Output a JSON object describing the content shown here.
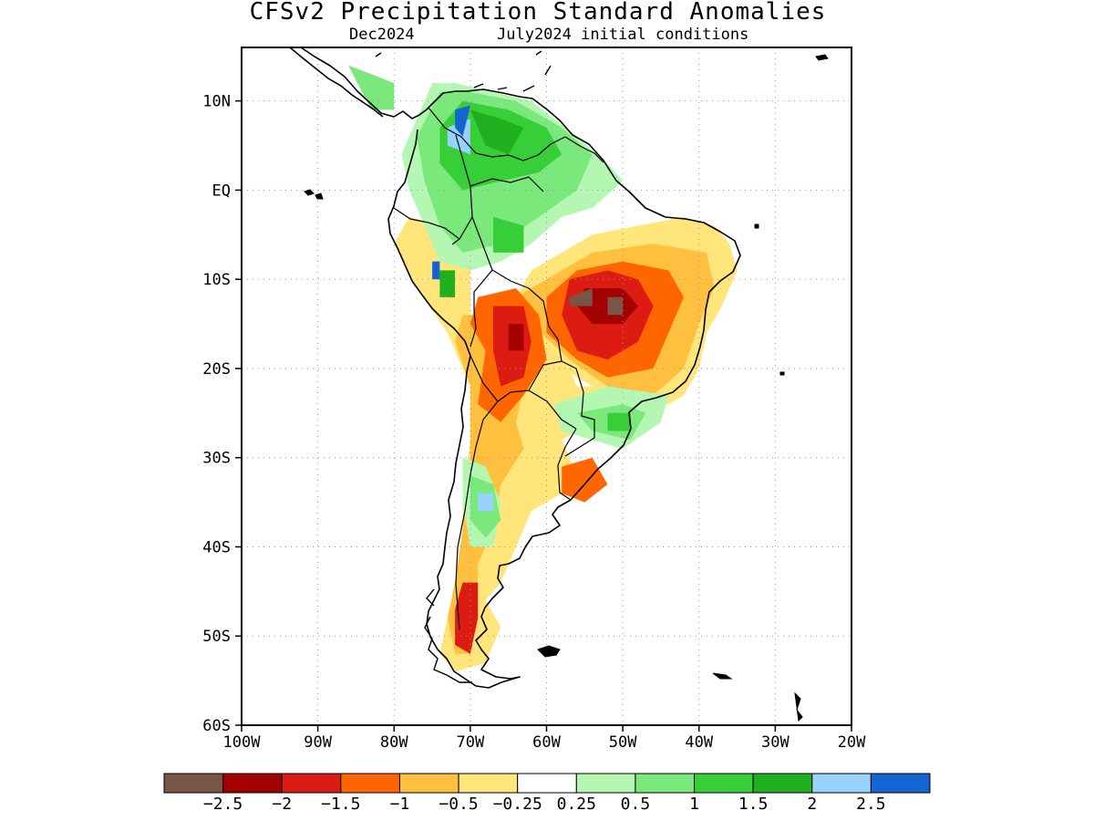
{
  "title": "CFSv2 Precipitation Standard Anomalies",
  "subtitle_left": "Dec2024",
  "subtitle_right": "July2024 initial conditions",
  "map": {
    "lon_range": [
      -100,
      -20
    ],
    "lat_range": [
      -60,
      16
    ],
    "lat_ticks": [
      {
        "value": 10,
        "label": "10N"
      },
      {
        "value": 0,
        "label": "EQ"
      },
      {
        "value": -10,
        "label": "10S"
      },
      {
        "value": -20,
        "label": "20S"
      },
      {
        "value": -30,
        "label": "30S"
      },
      {
        "value": -40,
        "label": "40S"
      },
      {
        "value": -50,
        "label": "50S"
      },
      {
        "value": -60,
        "label": "60S"
      }
    ],
    "lon_ticks": [
      {
        "value": -100,
        "label": "100W"
      },
      {
        "value": -90,
        "label": "90W"
      },
      {
        "value": -80,
        "label": "80W"
      },
      {
        "value": -70,
        "label": "70W"
      },
      {
        "value": -60,
        "label": "60W"
      },
      {
        "value": -50,
        "label": "50W"
      },
      {
        "value": -40,
        "label": "40W"
      },
      {
        "value": -30,
        "label": "30W"
      },
      {
        "value": -20,
        "label": "20W"
      }
    ],
    "grid": "dotted",
    "anomaly_regions": [
      {
        "category": "lt_-0.25",
        "lonlat": [
          [
            -78,
            -3
          ],
          [
            -74,
            -4
          ],
          [
            -70,
            -8
          ],
          [
            -70,
            -14
          ],
          [
            -66,
            -16
          ],
          [
            -62,
            -16
          ],
          [
            -58,
            -18
          ],
          [
            -56,
            -22
          ],
          [
            -52,
            -22
          ],
          [
            -50,
            -24
          ],
          [
            -54,
            -26
          ],
          [
            -58,
            -28
          ],
          [
            -56,
            -32
          ],
          [
            -58,
            -34
          ],
          [
            -62,
            -36
          ],
          [
            -64,
            -40
          ],
          [
            -66,
            -44
          ],
          [
            -68,
            -46
          ],
          [
            -66,
            -49
          ],
          [
            -68,
            -53
          ],
          [
            -72,
            -54
          ],
          [
            -74,
            -52
          ],
          [
            -73,
            -48
          ],
          [
            -72,
            -44
          ],
          [
            -71,
            -40
          ],
          [
            -71,
            -34
          ],
          [
            -70,
            -28
          ],
          [
            -70,
            -22
          ],
          [
            -73,
            -16
          ],
          [
            -77,
            -11
          ],
          [
            -80,
            -6
          ]
        ]
      },
      {
        "category": "lt_-0.25",
        "lonlat": [
          [
            -62,
            -9
          ],
          [
            -54,
            -5
          ],
          [
            -48,
            -4
          ],
          [
            -42,
            -3
          ],
          [
            -38,
            -4
          ],
          [
            -36,
            -6
          ],
          [
            -35,
            -9
          ],
          [
            -37,
            -13
          ],
          [
            -39,
            -16
          ],
          [
            -40,
            -20
          ],
          [
            -42,
            -23
          ],
          [
            -46,
            -25
          ],
          [
            -50,
            -24
          ],
          [
            -54,
            -22
          ],
          [
            -58,
            -20
          ],
          [
            -62,
            -16
          ],
          [
            -64,
            -12
          ]
        ]
      },
      {
        "category": "lt_-0.5",
        "lonlat": [
          [
            -60,
            -10
          ],
          [
            -54,
            -7
          ],
          [
            -46,
            -6
          ],
          [
            -39,
            -7
          ],
          [
            -38,
            -11
          ],
          [
            -40,
            -15
          ],
          [
            -42,
            -20
          ],
          [
            -46,
            -23
          ],
          [
            -52,
            -22
          ],
          [
            -57,
            -19
          ],
          [
            -62,
            -15
          ],
          [
            -64,
            -12
          ]
        ]
      },
      {
        "category": "lt_-0.5",
        "lonlat": [
          [
            -71,
            -14
          ],
          [
            -66,
            -14
          ],
          [
            -62,
            -18
          ],
          [
            -64,
            -26
          ],
          [
            -63,
            -29
          ],
          [
            -66,
            -33
          ],
          [
            -67,
            -38
          ],
          [
            -69,
            -42
          ],
          [
            -69,
            -47
          ],
          [
            -70,
            -52
          ],
          [
            -72,
            -52
          ],
          [
            -73,
            -48
          ],
          [
            -72,
            -44
          ],
          [
            -71,
            -38
          ],
          [
            -70,
            -30
          ],
          [
            -70,
            -22
          ],
          [
            -72,
            -17
          ]
        ]
      },
      {
        "category": "lt_-1",
        "lonlat": [
          [
            -56,
            -9
          ],
          [
            -50,
            -8
          ],
          [
            -44,
            -9
          ],
          [
            -42,
            -12
          ],
          [
            -44,
            -16
          ],
          [
            -46,
            -20
          ],
          [
            -52,
            -21
          ],
          [
            -56,
            -19
          ],
          [
            -60,
            -16
          ],
          [
            -60,
            -12
          ]
        ]
      },
      {
        "category": "lt_-1",
        "lonlat": [
          [
            -69,
            -12
          ],
          [
            -64,
            -11
          ],
          [
            -61,
            -14
          ],
          [
            -60,
            -19
          ],
          [
            -63,
            -23
          ],
          [
            -66,
            -26
          ],
          [
            -69,
            -24
          ],
          [
            -68,
            -18
          ],
          [
            -70,
            -15
          ]
        ]
      },
      {
        "category": "lt_-1",
        "lonlat": [
          [
            -58,
            -31
          ],
          [
            -54,
            -30
          ],
          [
            -52,
            -33
          ],
          [
            -55,
            -35
          ],
          [
            -58,
            -34
          ]
        ]
      },
      {
        "category": "lt_-1.5",
        "lonlat": [
          [
            -57,
            -10
          ],
          [
            -52,
            -9
          ],
          [
            -48,
            -10
          ],
          [
            -46,
            -13
          ],
          [
            -48,
            -17
          ],
          [
            -52,
            -19
          ],
          [
            -56,
            -18
          ],
          [
            -58,
            -14
          ]
        ]
      },
      {
        "category": "lt_-1.5",
        "lonlat": [
          [
            -67,
            -13
          ],
          [
            -63,
            -13
          ],
          [
            -62,
            -17
          ],
          [
            -63,
            -21
          ],
          [
            -66,
            -22
          ],
          [
            -67,
            -18
          ]
        ]
      },
      {
        "category": "lt_-1.5",
        "lonlat": [
          [
            -71,
            -44
          ],
          [
            -69,
            -44
          ],
          [
            -69,
            -48
          ],
          [
            -70,
            -52
          ],
          [
            -72,
            -51
          ],
          [
            -72,
            -47
          ]
        ]
      },
      {
        "category": "lt_-2",
        "lonlat": [
          [
            -55,
            -11
          ],
          [
            -50,
            -11
          ],
          [
            -48,
            -13
          ],
          [
            -50,
            -15
          ],
          [
            -54,
            -15
          ],
          [
            -56,
            -13
          ]
        ]
      },
      {
        "category": "lt_-2",
        "lonlat": [
          [
            -65,
            -15
          ],
          [
            -63,
            -15
          ],
          [
            -63,
            -18
          ],
          [
            -65,
            -18
          ]
        ]
      },
      {
        "category": "lt_-2.5",
        "lonlat": [
          [
            -57,
            -12
          ],
          [
            -54,
            -11
          ],
          [
            -54,
            -13
          ],
          [
            -57,
            -13
          ]
        ]
      },
      {
        "category": "lt_-2.5",
        "lonlat": [
          [
            -52,
            -12
          ],
          [
            -50,
            -12
          ],
          [
            -50,
            -14
          ],
          [
            -52,
            -14
          ]
        ]
      },
      {
        "category": "lt_-2.5",
        "lonlat": [
          [
            -74,
            -10
          ],
          [
            -73,
            -10
          ],
          [
            -72,
            -12
          ],
          [
            -73,
            -12
          ]
        ]
      },
      {
        "category": "gt_0.25",
        "lonlat": [
          [
            -75,
            12
          ],
          [
            -72,
            12
          ],
          [
            -67,
            11
          ],
          [
            -62,
            10
          ],
          [
            -56,
            6
          ],
          [
            -52,
            3
          ],
          [
            -50,
            1
          ],
          [
            -54,
            -2
          ],
          [
            -58,
            -3
          ],
          [
            -62,
            -6
          ],
          [
            -66,
            -8
          ],
          [
            -70,
            -9
          ],
          [
            -74,
            -8
          ],
          [
            -76,
            -4
          ],
          [
            -78,
            0
          ],
          [
            -79,
            4
          ],
          [
            -77,
            8
          ]
        ]
      },
      {
        "category": "gt_0.25",
        "lonlat": [
          [
            -59,
            -24
          ],
          [
            -52,
            -22
          ],
          [
            -44,
            -23
          ],
          [
            -45,
            -26
          ],
          [
            -50,
            -29
          ],
          [
            -54,
            -28
          ],
          [
            -58,
            -27
          ]
        ]
      },
      {
        "category": "gt_0.25",
        "lonlat": [
          [
            -71,
            -30
          ],
          [
            -68,
            -31
          ],
          [
            -66,
            -35
          ],
          [
            -67,
            -40
          ],
          [
            -70,
            -40
          ],
          [
            -71,
            -35
          ]
        ]
      },
      {
        "category": "gt_0.5",
        "lonlat": [
          [
            -74,
            11
          ],
          [
            -70,
            11
          ],
          [
            -64,
            10
          ],
          [
            -58,
            7
          ],
          [
            -54,
            4
          ],
          [
            -56,
            0
          ],
          [
            -61,
            -3
          ],
          [
            -66,
            -6
          ],
          [
            -71,
            -7
          ],
          [
            -74,
            -4
          ],
          [
            -76,
            1
          ],
          [
            -77,
            6
          ]
        ]
      },
      {
        "category": "gt_0.5",
        "lonlat": [
          [
            -56,
            -25
          ],
          [
            -50,
            -24
          ],
          [
            -47,
            -25
          ],
          [
            -49,
            -28
          ],
          [
            -54,
            -27
          ]
        ]
      },
      {
        "category": "gt_0.5",
        "lonlat": [
          [
            -70,
            -32
          ],
          [
            -67,
            -33
          ],
          [
            -66,
            -37
          ],
          [
            -68,
            -39
          ],
          [
            -70,
            -37
          ]
        ]
      },
      {
        "category": "gt_0.5",
        "lonlat": [
          [
            -83,
            9
          ],
          [
            -80,
            9
          ],
          [
            -80,
            12
          ],
          [
            -83,
            13
          ],
          [
            -86,
            14
          ]
        ]
      },
      {
        "category": "gt_1",
        "lonlat": [
          [
            -71,
            10
          ],
          [
            -65,
            9
          ],
          [
            -60,
            7
          ],
          [
            -58,
            4
          ],
          [
            -61,
            2
          ],
          [
            -66,
            1
          ],
          [
            -71,
            0
          ],
          [
            -74,
            3
          ],
          [
            -74,
            7
          ]
        ]
      },
      {
        "category": "gt_1",
        "lonlat": [
          [
            -67,
            -3
          ],
          [
            -63,
            -4
          ],
          [
            -63,
            -7
          ],
          [
            -67,
            -7
          ]
        ]
      },
      {
        "category": "gt_1",
        "lonlat": [
          [
            -52,
            -25
          ],
          [
            -49,
            -25
          ],
          [
            -49,
            -27
          ],
          [
            -52,
            -27
          ]
        ]
      },
      {
        "category": "gt_1.5",
        "lonlat": [
          [
            -70,
            9
          ],
          [
            -66,
            8
          ],
          [
            -63,
            7
          ],
          [
            -65,
            4
          ],
          [
            -68,
            5
          ]
        ]
      },
      {
        "category": "gt_1.5",
        "lonlat": [
          [
            -74,
            -9
          ],
          [
            -72,
            -9
          ],
          [
            -72,
            -12
          ],
          [
            -74,
            -12
          ]
        ]
      },
      {
        "category": "gt_2",
        "lonlat": [
          [
            -73,
            7
          ],
          [
            -70,
            8
          ],
          [
            -70,
            4
          ],
          [
            -73,
            5
          ]
        ]
      },
      {
        "category": "gt_2",
        "lonlat": [
          [
            -69,
            -34
          ],
          [
            -67,
            -34
          ],
          [
            -67,
            -36
          ],
          [
            -69,
            -36
          ]
        ]
      },
      {
        "category": "gt_2.5",
        "lonlat": [
          [
            -72,
            9
          ],
          [
            -70,
            9.5
          ],
          [
            -71,
            6
          ],
          [
            -72,
            7
          ]
        ]
      },
      {
        "category": "gt_2.5",
        "lonlat": [
          [
            -75,
            -8
          ],
          [
            -74,
            -8
          ],
          [
            -74,
            -10
          ],
          [
            -75,
            -10
          ]
        ]
      }
    ]
  },
  "legend": {
    "colors": [
      "#7a5547",
      "#a30000",
      "#dc1c13",
      "#ff6600",
      "#ffc040",
      "#ffe57a",
      "#ffffff",
      "#b3f7b3",
      "#7ae87a",
      "#37cf37",
      "#1faf1f",
      "#96d2fa",
      "#1464d2"
    ],
    "labels": [
      "−2.5",
      "−2",
      "−1.5",
      "−1",
      "−0.5",
      "−0.25",
      "0.25",
      "0.5",
      "1",
      "1.5",
      "2",
      "2.5"
    ]
  },
  "category_colors": {
    "lt_-0.25": "#ffe57a",
    "lt_-0.5": "#ffc040",
    "lt_-1": "#ff6600",
    "lt_-1.5": "#dc1c13",
    "lt_-2": "#a30000",
    "lt_-2.5": "#7a5547",
    "gt_0.25": "#b3f7b3",
    "gt_0.5": "#7ae87a",
    "gt_1": "#37cf37",
    "gt_1.5": "#1faf1f",
    "gt_2": "#96d2fa",
    "gt_2.5": "#1464d2"
  }
}
